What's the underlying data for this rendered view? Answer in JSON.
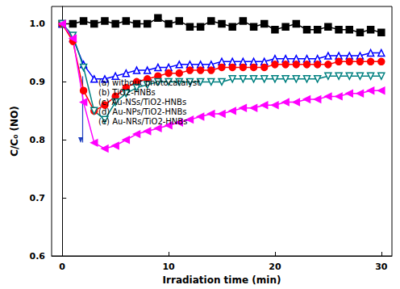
{
  "chart_data": {
    "type": "line",
    "x_label": "Irradiation time (min)",
    "y_label": "C/C₀ (NO)",
    "x": [
      0,
      1,
      2,
      3,
      4,
      5,
      6,
      7,
      8,
      9,
      10,
      11,
      12,
      13,
      14,
      15,
      16,
      17,
      18,
      19,
      20,
      21,
      22,
      23,
      24,
      25,
      26,
      27,
      28,
      29,
      30
    ],
    "series": [
      {
        "name": "(a) without photocatalyst",
        "color": "#000000",
        "marker": "square",
        "values": [
          1.0,
          1.0,
          1.005,
          1.0,
          1.005,
          1.0,
          1.005,
          1.0,
          1.0,
          1.01,
          1.0,
          1.005,
          0.995,
          0.995,
          1.005,
          1.0,
          0.995,
          1.005,
          0.995,
          1.0,
          0.99,
          0.995,
          1.0,
          0.99,
          0.99,
          0.995,
          0.99,
          0.99,
          0.985,
          0.99,
          0.985
        ]
      },
      {
        "name": "(b) TiO2-HNBs",
        "color": "#0000ff",
        "marker": "open_triangle",
        "values": [
          1.0,
          0.975,
          0.93,
          0.905,
          0.905,
          0.91,
          0.915,
          0.92,
          0.92,
          0.925,
          0.925,
          0.93,
          0.93,
          0.93,
          0.93,
          0.935,
          0.935,
          0.935,
          0.935,
          0.935,
          0.94,
          0.94,
          0.94,
          0.94,
          0.94,
          0.945,
          0.945,
          0.945,
          0.945,
          0.95,
          0.95
        ]
      },
      {
        "name": "(c) Au-NSs/TiO2-HNBs",
        "color": "#ff0000",
        "marker": "circle",
        "values": [
          1.0,
          0.97,
          0.885,
          0.85,
          0.86,
          0.875,
          0.89,
          0.9,
          0.905,
          0.91,
          0.915,
          0.915,
          0.92,
          0.92,
          0.92,
          0.925,
          0.925,
          0.925,
          0.925,
          0.925,
          0.93,
          0.93,
          0.93,
          0.93,
          0.93,
          0.93,
          0.935,
          0.935,
          0.935,
          0.935,
          0.935
        ]
      },
      {
        "name": "(d) Au-NPs/TiO2-HNBs",
        "color": "#008080",
        "marker": "open_triangle_down",
        "values": [
          1.0,
          0.98,
          0.925,
          0.85,
          0.835,
          0.865,
          0.88,
          0.89,
          0.895,
          0.9,
          0.9,
          0.9,
          0.9,
          0.9,
          0.9,
          0.9,
          0.905,
          0.905,
          0.905,
          0.905,
          0.905,
          0.905,
          0.905,
          0.905,
          0.905,
          0.91,
          0.91,
          0.91,
          0.91,
          0.91,
          0.91
        ]
      },
      {
        "name": "(e) Au-NRs/TiO2-HNBs",
        "color": "#ff00ff",
        "marker": "triangle_left",
        "values": [
          1.0,
          0.975,
          0.865,
          0.795,
          0.785,
          0.79,
          0.8,
          0.81,
          0.815,
          0.82,
          0.825,
          0.83,
          0.835,
          0.84,
          0.845,
          0.845,
          0.85,
          0.855,
          0.855,
          0.86,
          0.86,
          0.865,
          0.865,
          0.87,
          0.87,
          0.875,
          0.875,
          0.88,
          0.88,
          0.885,
          0.885
        ]
      }
    ],
    "xlim": [
      -1,
      31
    ],
    "xticks": [
      0,
      10,
      20,
      30
    ],
    "ylim": [
      0.6,
      1.03
    ],
    "yticks": [
      0.6,
      0.7,
      0.8,
      0.9,
      {
        "value": 1,
        "label": "1.0"
      }
    ],
    "grid": false,
    "legend": "upper left"
  }
}
